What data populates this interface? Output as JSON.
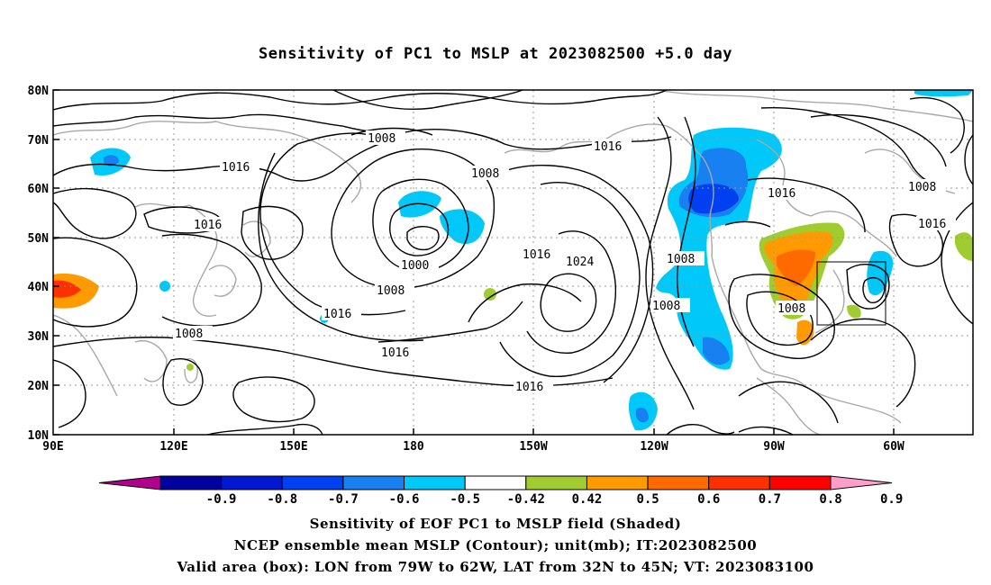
{
  "title": "Sensitivity of PC1 to MSLP at 2023082500 +5.0 day",
  "lon_labels": [
    "90E",
    "120E",
    "150E",
    "180",
    "150W",
    "120W",
    "90W",
    "60W"
  ],
  "lat_labels": [
    "80N",
    "70N",
    "60N",
    "50N",
    "40N",
    "30N",
    "20N",
    "10N"
  ],
  "contour_labels": [
    "1008",
    "1016",
    "1016",
    "1008",
    "1016",
    "1000",
    "1008",
    "1016",
    "1008",
    "1016",
    "1024",
    "1016",
    "1008",
    "1008",
    "1016",
    "1008",
    "1016",
    "1008",
    "1016"
  ],
  "colorbar": {
    "labels": [
      "-0.9",
      "-0.8",
      "-0.7",
      "-0.6",
      "-0.5",
      "-0.42",
      "0.42",
      "0.5",
      "0.6",
      "0.7",
      "0.8",
      "0.9"
    ],
    "colors": [
      "#b0008c",
      "#0000a0",
      "#0018d0",
      "#0040f0",
      "#1880f0",
      "#00c8f8",
      "#ffffff",
      "#a0cc30",
      "#ff9a00",
      "#ff6a00",
      "#ff3000",
      "#ff0000",
      "#ff9ec8"
    ]
  },
  "valid_box": {
    "lon_range": [
      "79W",
      "62W"
    ],
    "lat_range": [
      "32N",
      "45N"
    ]
  },
  "captions": [
    "Sensitivity of EOF PC1 to MSLP field (Shaded)",
    "NCEP ensemble mean MSLP (Contour); unit(mb); IT:2023082500",
    "Valid area (box): LON from 79W to 62W, LAT from 32N to 45N; VT: 2023083100"
  ]
}
